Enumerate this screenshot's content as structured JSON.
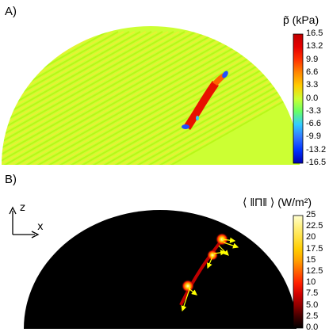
{
  "panels": [
    {
      "label": "A)",
      "colorbar_title": "p̃ (kPa)",
      "colorbar_ticks": [
        "16.5",
        "13.2",
        "9.9",
        "6.6",
        "3.3",
        "0.0",
        "-3.3",
        "-6.6",
        "-9.9",
        "-13.2",
        "-16.5"
      ],
      "colorbar_stops": [
        "#c00000",
        "#e60000",
        "#ff3300",
        "#ff8800",
        "#ffcc00",
        "#ccff33",
        "#66ff66",
        "#33ccff",
        "#3377ff",
        "#0033ff",
        "#0000b0"
      ]
    },
    {
      "label": "B)",
      "colorbar_title": "⟨ ‖Π‖ ⟩ (W/m²)",
      "colorbar_ticks": [
        "25",
        "22.5",
        "20",
        "17.5",
        "15",
        "12.5",
        "10",
        "7.5",
        "5.0",
        "2.5",
        "0.0"
      ],
      "colorbar_stops": [
        "#ffffd0",
        "#fff080",
        "#ffe040",
        "#ffcc00",
        "#ffa000",
        "#ff6000",
        "#ff2000",
        "#d00000",
        "#900000",
        "#400000",
        "#000000"
      ],
      "axis_z": "z",
      "axis_x": "x"
    }
  ],
  "chart_data": [
    {
      "type": "heatmap",
      "title": "",
      "colorbar_label": "p̃ (kPa)",
      "colorbar_range": [
        -16.5,
        16.5
      ],
      "colormap_anchors": [
        {
          "value": 16.5,
          "color": "#c00000"
        },
        {
          "value": 0.0,
          "color": "#ccff33"
        },
        {
          "value": -16.5,
          "color": "#0000b0"
        }
      ],
      "background_value": 0.0,
      "stripe_amplitude": 2.0,
      "features": [
        {
          "kind": "positive-band",
          "value": 16.5
        },
        {
          "kind": "negative-spots",
          "value": -16.5
        }
      ]
    },
    {
      "type": "heatmap",
      "title": "",
      "colorbar_label": "⟨ ‖Π‖ ⟩ (W/m²)",
      "colorbar_range": [
        0.0,
        25
      ],
      "colormap_anchors": [
        {
          "value": 25,
          "color": "#ffffd0"
        },
        {
          "value": 12.5,
          "color": "#ff6000"
        },
        {
          "value": 0.0,
          "color": "#000000"
        }
      ],
      "background_value": 0.0,
      "hotspots": [
        {
          "name": "hotspot-top",
          "value": 25
        },
        {
          "name": "hotspot-mid",
          "value": 20
        },
        {
          "name": "hotspot-low",
          "value": 17.5
        }
      ],
      "arrow_color": "#ffff00",
      "arrow_count": 7
    }
  ]
}
